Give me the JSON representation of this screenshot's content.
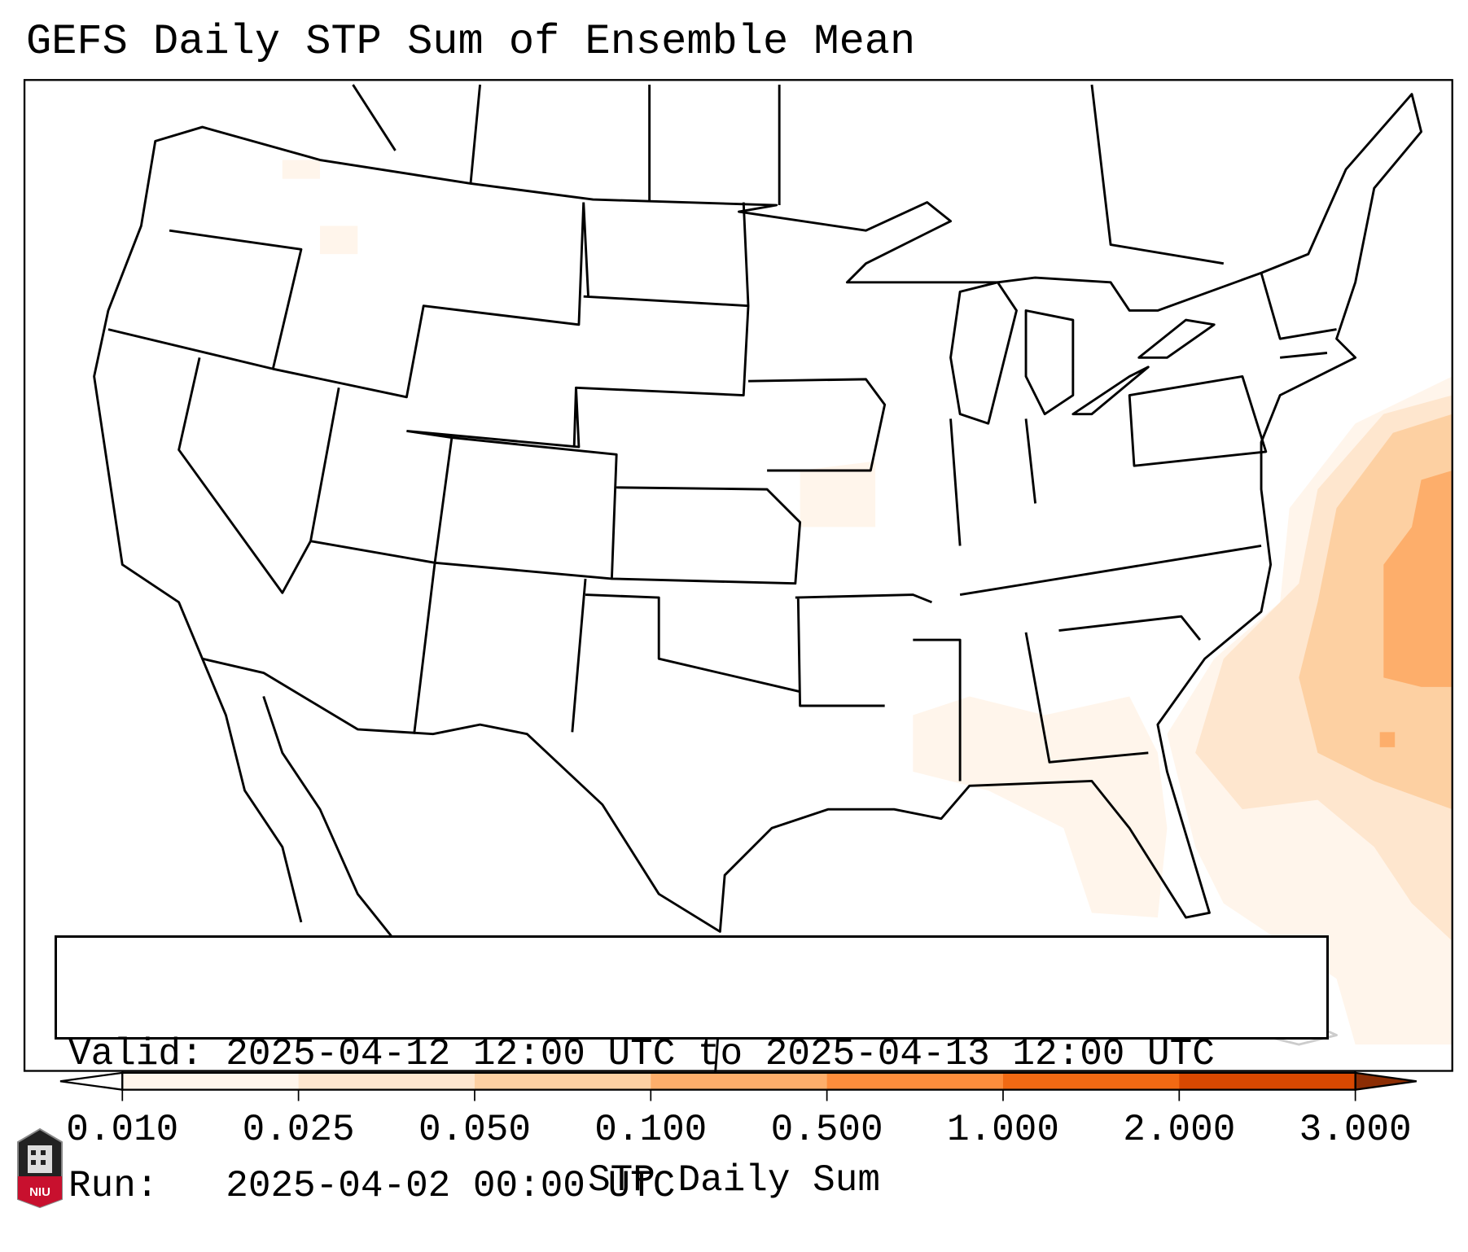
{
  "title": "GEFS Daily STP Sum of Ensemble Mean",
  "info_box": {
    "valid": "Valid: 2025-04-12 12:00 UTC to 2025-04-13 12:00 UTC",
    "run": "Run:   2025-04-02 00:00 UTC"
  },
  "colorbar": {
    "label": "STP Daily Sum",
    "ticks": [
      "0.010",
      "0.025",
      "0.050",
      "0.100",
      "0.500",
      "1.000",
      "2.000",
      "3.000"
    ],
    "colors": [
      "#fff5eb",
      "#fee6ce",
      "#fdd0a2",
      "#fdae6b",
      "#fd8d3c",
      "#f16913",
      "#d94801"
    ],
    "under_color": "#ffffff",
    "over_color": "#8c2d04"
  },
  "logo": {
    "text": "NIU",
    "color": "#c8102e"
  }
}
